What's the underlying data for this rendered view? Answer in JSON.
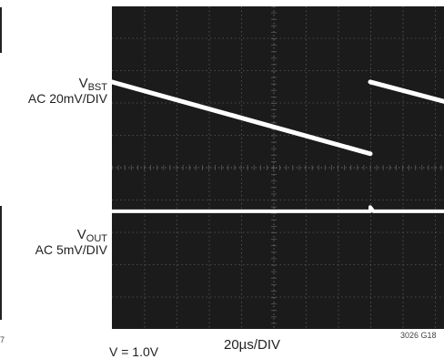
{
  "chart_data": {
    "type": "line",
    "title": "",
    "xlabel": "20µs/DIV",
    "x_divisions": 10,
    "y_divisions": 8,
    "grid": true,
    "series": [
      {
        "name": "VBST",
        "channel_label": {
          "main": "V",
          "sub": "BST",
          "scale": "AC 20mV/DIV"
        },
        "x": [
          0,
          8.0,
          8.0,
          13.5
        ],
        "y": [
          2.65,
          0.43,
          2.65,
          1.2
        ],
        "color": "#ffffff"
      },
      {
        "name": "VOUT",
        "channel_label": {
          "main": "V",
          "sub": "OUT",
          "scale": "AC 5mV/DIV"
        },
        "x": [
          0,
          8.0,
          8.0,
          8.1,
          13.5
        ],
        "y": [
          -1.35,
          -1.35,
          -1.22,
          -1.35,
          -1.35
        ],
        "color": "#ffffff"
      }
    ]
  },
  "figure_id": "3026 G18",
  "left_clip_text": "7",
  "bottom_clip_text": "V = 1.0V",
  "colors": {
    "screen": "#1b1b1b",
    "grid": "#5a5a5a",
    "trace": "#ffffff"
  }
}
